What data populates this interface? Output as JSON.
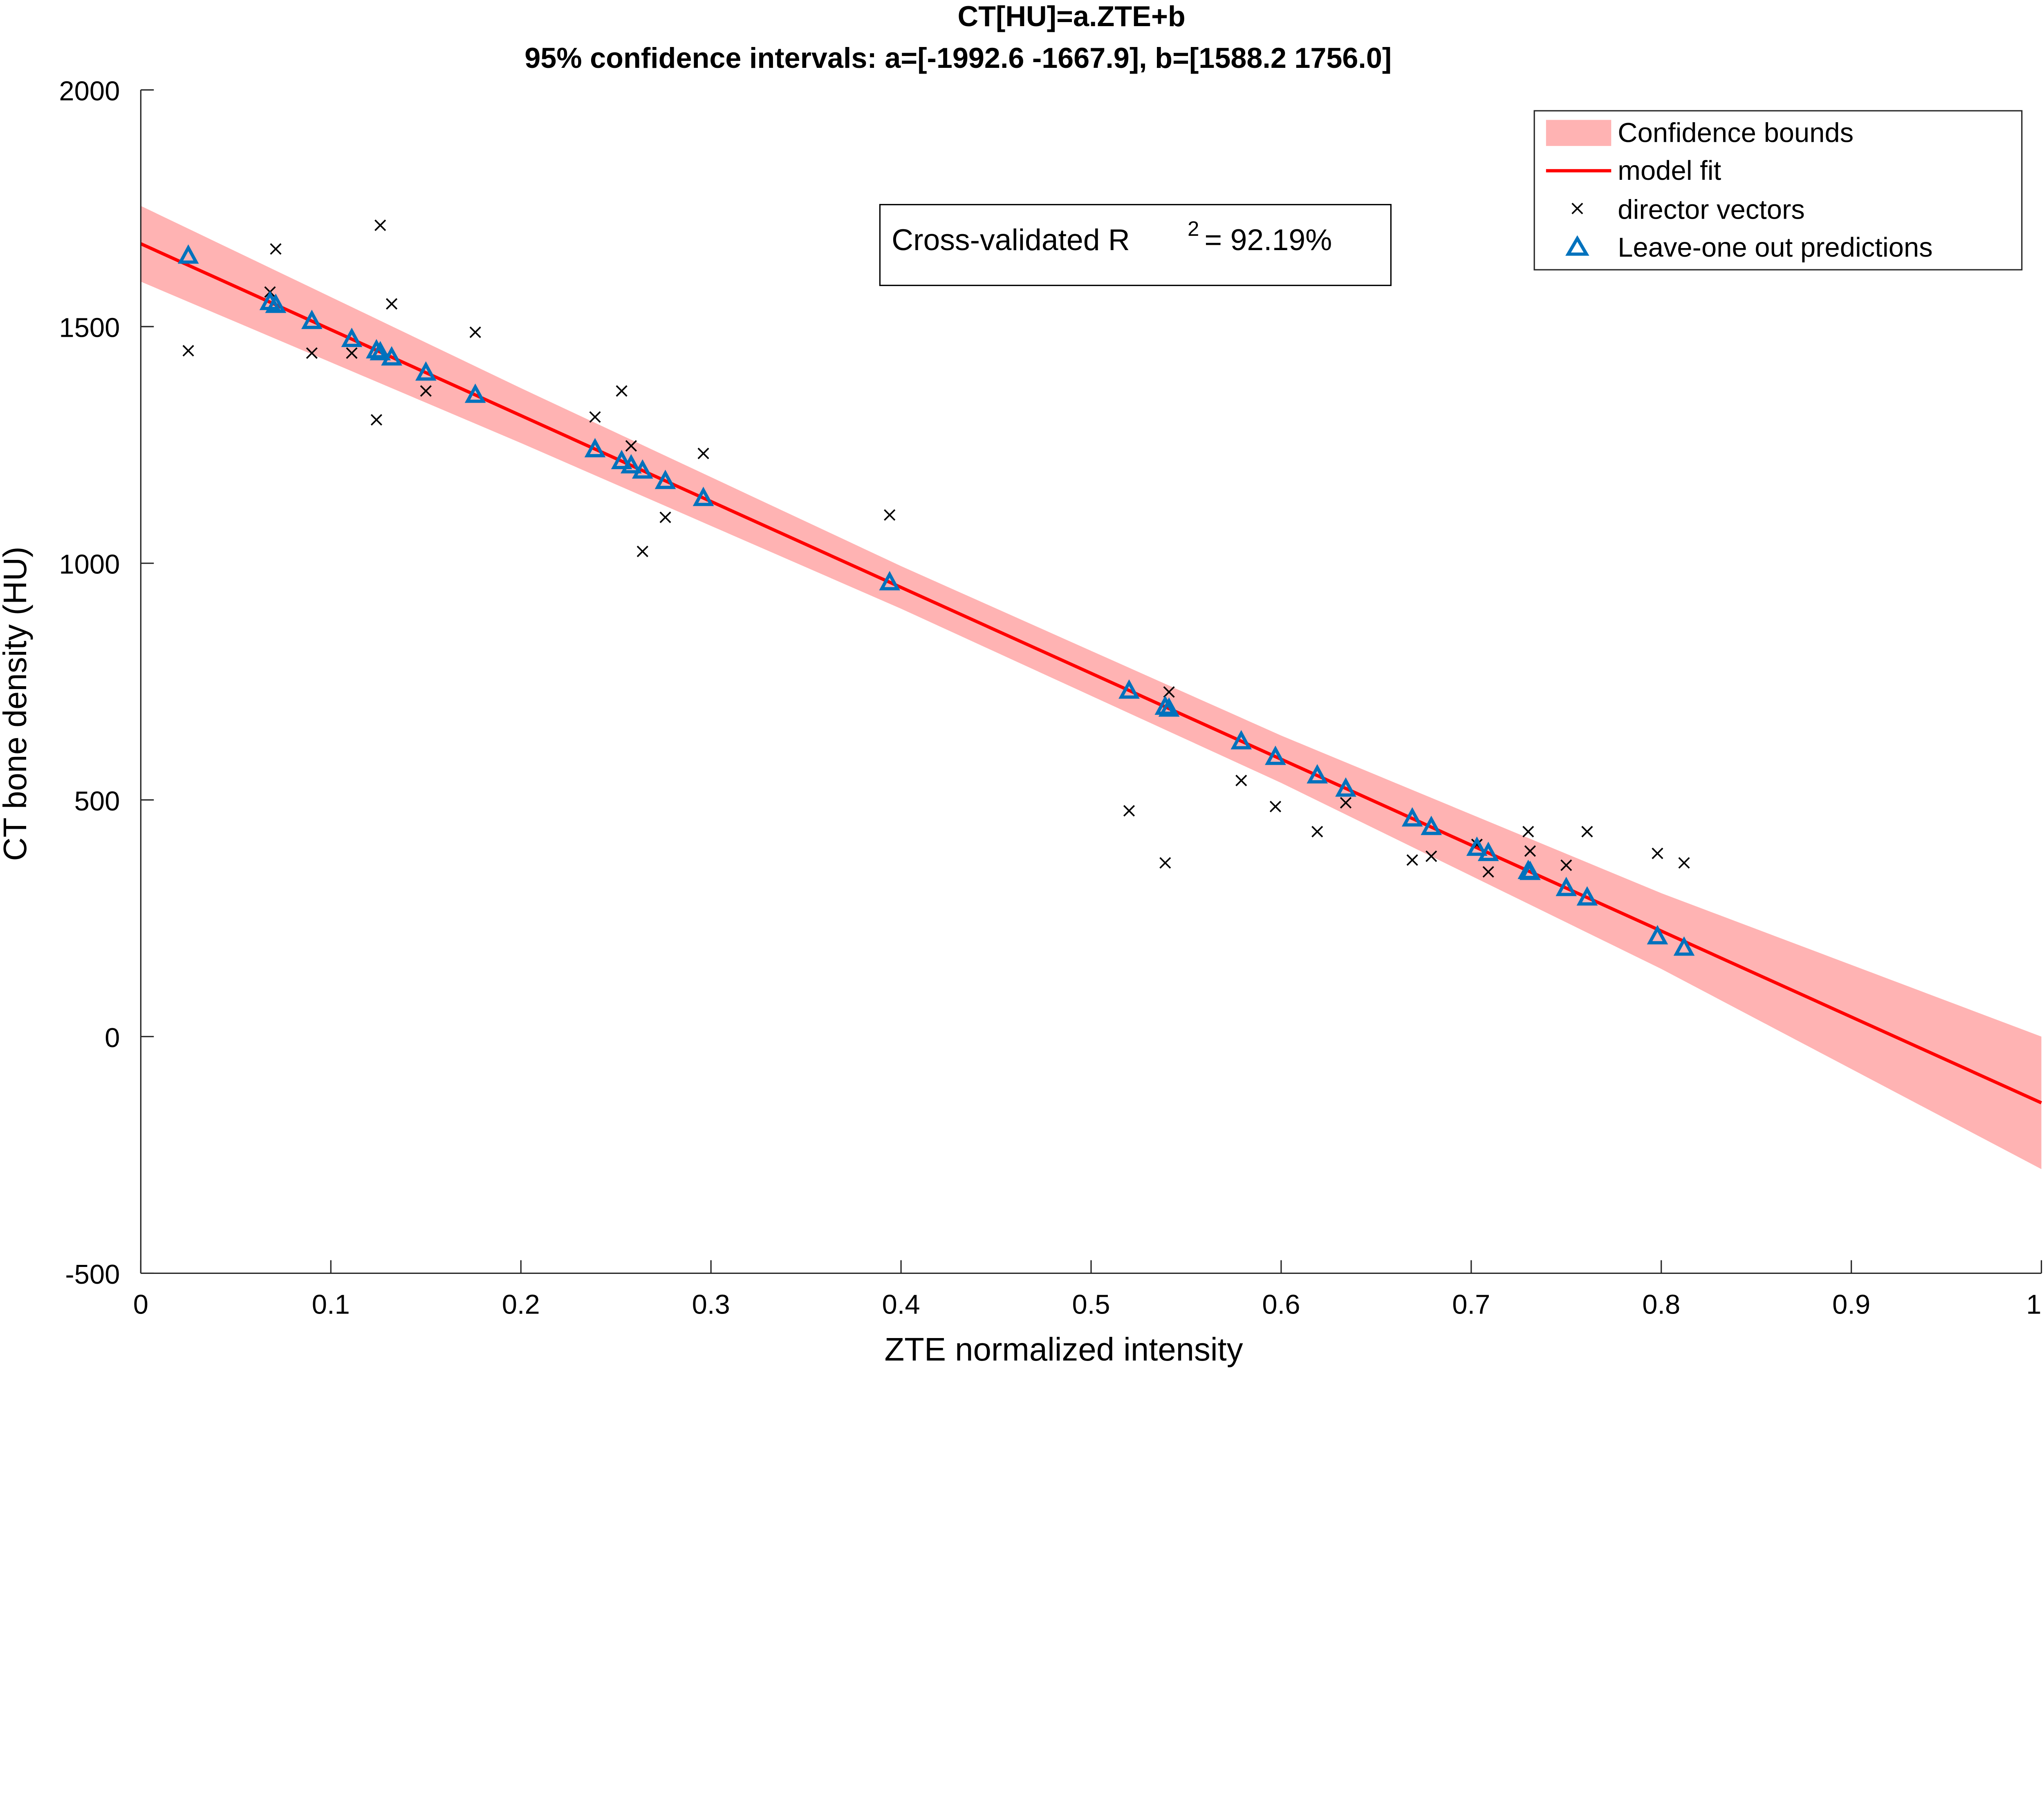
{
  "chart_data": {
    "type": "scatter",
    "title": "CT[HU]=a.ZTE+b",
    "subtitle": "95% confidence intervals: a=[-1992.6 -1667.9], b=[1588.2 1756.0]",
    "xlabel": "ZTE normalized intensity",
    "ylabel": "CT bone density (HU)",
    "xlim": [
      0,
      1
    ],
    "ylim": [
      -500,
      2000
    ],
    "xticks": [
      0,
      0.1,
      0.2,
      0.3,
      0.4,
      0.5,
      0.6,
      0.7,
      0.8,
      0.9,
      1
    ],
    "xtick_labels": [
      "0",
      "0.1",
      "0.2",
      "0.3",
      "0.4",
      "0.5",
      "0.6",
      "0.7",
      "0.8",
      "0.9",
      "1"
    ],
    "yticks": [
      -500,
      0,
      500,
      1000,
      1500,
      2000
    ],
    "ytick_labels": [
      "-500",
      "0",
      "500",
      "1000",
      "1500",
      "2000"
    ],
    "grid": false,
    "legend_placement": "top-right",
    "legend": [
      "Confidence bounds",
      "model fit",
      "director vectors",
      "Leave-one out predictions"
    ],
    "annotation": {
      "text": "Cross-validated R",
      "sup": "2",
      "suffix": "= 92.19%"
    },
    "colors": {
      "band": "#ffb3b3",
      "fit": "#ff0000",
      "points": "#000000",
      "predictions": "#0072bd"
    },
    "fit": {
      "slope": -1815,
      "intercept": 1675
    },
    "confidence_band": {
      "x": [
        0,
        0.2,
        0.4,
        0.6,
        0.8,
        1
      ],
      "half_width": [
        80,
        58,
        45,
        50,
        80,
        140
      ]
    },
    "x": [
      0.025,
      0.068,
      0.071,
      0.09,
      0.111,
      0.124,
      0.126,
      0.132,
      0.15,
      0.176,
      0.239,
      0.253,
      0.258,
      0.264,
      0.276,
      0.296,
      0.394,
      0.52,
      0.539,
      0.541,
      0.579,
      0.597,
      0.619,
      0.634,
      0.669,
      0.679,
      0.703,
      0.709,
      0.73,
      0.731,
      0.75,
      0.761,
      0.798,
      0.812
    ],
    "series": [
      {
        "name": "director vectors",
        "values": [
          1449,
          1573,
          1664,
          1444,
          1444,
          1303,
          1714,
          1548,
          1364,
          1488,
          1309,
          1364,
          1248,
          1025,
          1097,
          1232,
          1102,
          477,
          367,
          728,
          541,
          486,
          433,
          494,
          373,
          381,
          406,
          348,
          433,
          392,
          362,
          433,
          387,
          367
        ]
      },
      {
        "name": "Leave-one out predictions",
        "values": [
          1650,
          1552,
          1546,
          1512,
          1474,
          1450,
          1446,
          1435,
          1403,
          1356,
          1241,
          1216,
          1207,
          1196,
          1174,
          1138,
          960,
          731,
          697,
          693,
          624,
          591,
          552,
          524,
          461,
          443,
          399,
          388,
          350,
          348,
          314,
          294,
          212,
          188
        ]
      }
    ]
  }
}
